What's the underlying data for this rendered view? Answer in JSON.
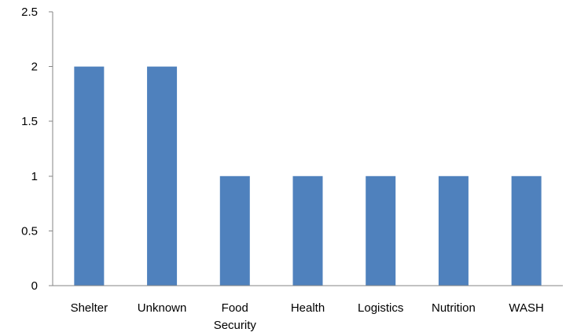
{
  "chart_data": {
    "type": "bar",
    "categories": [
      "Shelter",
      "Unknown",
      "Food Security",
      "Health",
      "Logistics",
      "Nutrition",
      "WASH"
    ],
    "category_lines": [
      [
        "Shelter"
      ],
      [
        "Unknown"
      ],
      [
        "Food",
        "Security"
      ],
      [
        "Health"
      ],
      [
        "Logistics"
      ],
      [
        "Nutrition"
      ],
      [
        "WASH"
      ]
    ],
    "values": [
      2,
      2,
      1,
      1,
      1,
      1,
      1
    ],
    "ylim": [
      0,
      2.5
    ],
    "yticks": [
      "0",
      "0.5",
      "1",
      "1.5",
      "2",
      "2.5"
    ],
    "ytick_values": [
      0,
      0.5,
      1,
      1.5,
      2,
      2.5
    ],
    "grid": false,
    "bar_color": "#4f81bd",
    "axis_color": "#868686"
  }
}
